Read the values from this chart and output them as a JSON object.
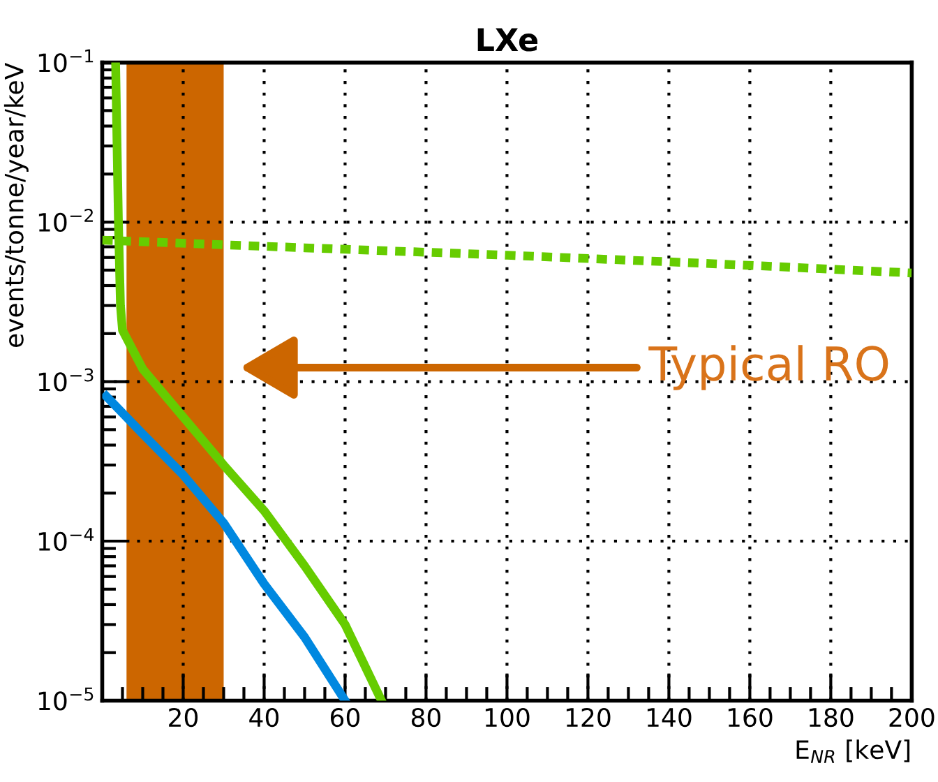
{
  "chart_data": {
    "type": "line",
    "title": "LXe",
    "xlabel": "E$_{NR}$ [keV]",
    "ylabel": "events/tonne/year/keV",
    "log": "y",
    "grid": true,
    "legend": false,
    "marker": "none",
    "xlim": [
      0,
      200
    ],
    "xticks": [
      20,
      40,
      60,
      80,
      100,
      120,
      140,
      160,
      180,
      200
    ],
    "ylim": [
      1e-05,
      0.1
    ],
    "yticks": [
      {
        "value": 1e-05,
        "label": "10$^{−5}$"
      },
      {
        "value": 0.0001,
        "label": "10$^{−4}$"
      },
      {
        "value": 0.001,
        "label": "10$^{−3}$"
      },
      {
        "value": 0.01,
        "label": "10$^{−2}$"
      },
      {
        "value": 0.1,
        "label": "10$^{−1}$"
      }
    ],
    "series": [
      {
        "color": "#66cc00",
        "line_style": "solid",
        "x": [
          3.3,
          4.0,
          4.5,
          5,
          10,
          20,
          30,
          40,
          50,
          60,
          69
        ],
        "values": [
          0.1,
          0.01,
          0.003,
          0.0021,
          0.0012,
          0.0006,
          0.0003,
          0.000155,
          7e-05,
          3e-05,
          1e-05
        ]
      },
      {
        "color": "#0088e0",
        "line_style": "solid",
        "x": [
          1,
          10,
          20,
          30,
          40,
          50,
          60
        ],
        "values": [
          0.00081,
          0.00047,
          0.00026,
          0.00013,
          5.4e-05,
          2.5e-05,
          1e-05
        ]
      },
      {
        "color": "#66cc00",
        "line_style": "dashed",
        "x": [
          0,
          50,
          100,
          150,
          200
        ],
        "values": [
          0.0077,
          0.0069,
          0.0062,
          0.0055,
          0.0048
        ]
      }
    ],
    "bands": [
      {
        "axis": "x",
        "from": 6,
        "to": 30,
        "color": "#cc6600"
      }
    ],
    "annotations": [
      "Typical RO"
    ]
  }
}
